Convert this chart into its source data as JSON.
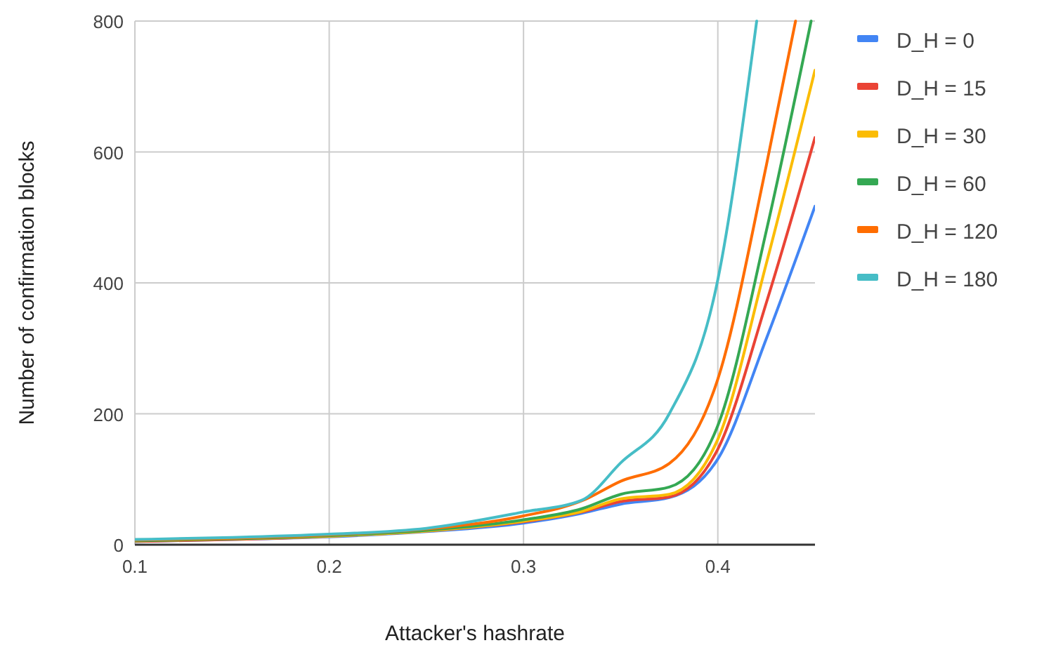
{
  "chart_data": {
    "type": "line",
    "xlabel": "Attacker's hashrate",
    "ylabel": "Number of confirmation blocks",
    "xlim": [
      0.1,
      0.45
    ],
    "xticks": [
      0.1,
      0.2,
      0.3,
      0.4
    ],
    "ylim": [
      0,
      800
    ],
    "yticks": [
      0,
      200,
      400,
      600,
      800
    ],
    "grid": true,
    "legend": "right",
    "series": [
      {
        "name": "D_H = 0",
        "color": "#4285f4",
        "x": [
          0.1,
          0.15,
          0.2,
          0.25,
          0.3,
          0.33,
          0.35,
          0.375,
          0.4,
          0.425,
          0.45
        ],
        "values": [
          5,
          8,
          12,
          20,
          33,
          48,
          62,
          72,
          131,
          315,
          517
        ]
      },
      {
        "name": "D_H = 15",
        "color": "#ea4335",
        "x": [
          0.1,
          0.15,
          0.2,
          0.25,
          0.3,
          0.33,
          0.35,
          0.375,
          0.4,
          0.425,
          0.45
        ],
        "values": [
          5,
          8,
          13,
          21,
          35,
          50,
          66,
          73,
          146,
          370,
          622
        ]
      },
      {
        "name": "D_H = 30",
        "color": "#fbbc04",
        "x": [
          0.1,
          0.15,
          0.2,
          0.25,
          0.3,
          0.33,
          0.35,
          0.375,
          0.4,
          0.425,
          0.45
        ],
        "values": [
          6,
          9,
          13,
          21,
          36,
          51,
          70,
          77,
          161,
          430,
          725
        ]
      },
      {
        "name": "D_H = 60",
        "color": "#34a853",
        "x": [
          0.1,
          0.15,
          0.2,
          0.25,
          0.3,
          0.33,
          0.35,
          0.375,
          0.4,
          0.425,
          0.448
        ],
        "values": [
          6,
          9,
          14,
          22,
          38,
          55,
          77,
          88,
          182,
          480,
          800
        ]
      },
      {
        "name": "D_H = 120",
        "color": "#ff6d01",
        "x": [
          0.1,
          0.15,
          0.2,
          0.25,
          0.3,
          0.33,
          0.35,
          0.375,
          0.4,
          0.425,
          0.44
        ],
        "values": [
          7,
          10,
          15,
          24,
          44,
          67,
          97,
          124,
          253,
          580,
          800
        ]
      },
      {
        "name": "D_H = 180",
        "color": "#46bdc6",
        "x": [
          0.1,
          0.15,
          0.2,
          0.25,
          0.3,
          0.33,
          0.35,
          0.375,
          0.4,
          0.42
        ],
        "values": [
          8,
          11,
          16,
          25,
          50,
          68,
          125,
          200,
          405,
          800
        ]
      }
    ]
  }
}
